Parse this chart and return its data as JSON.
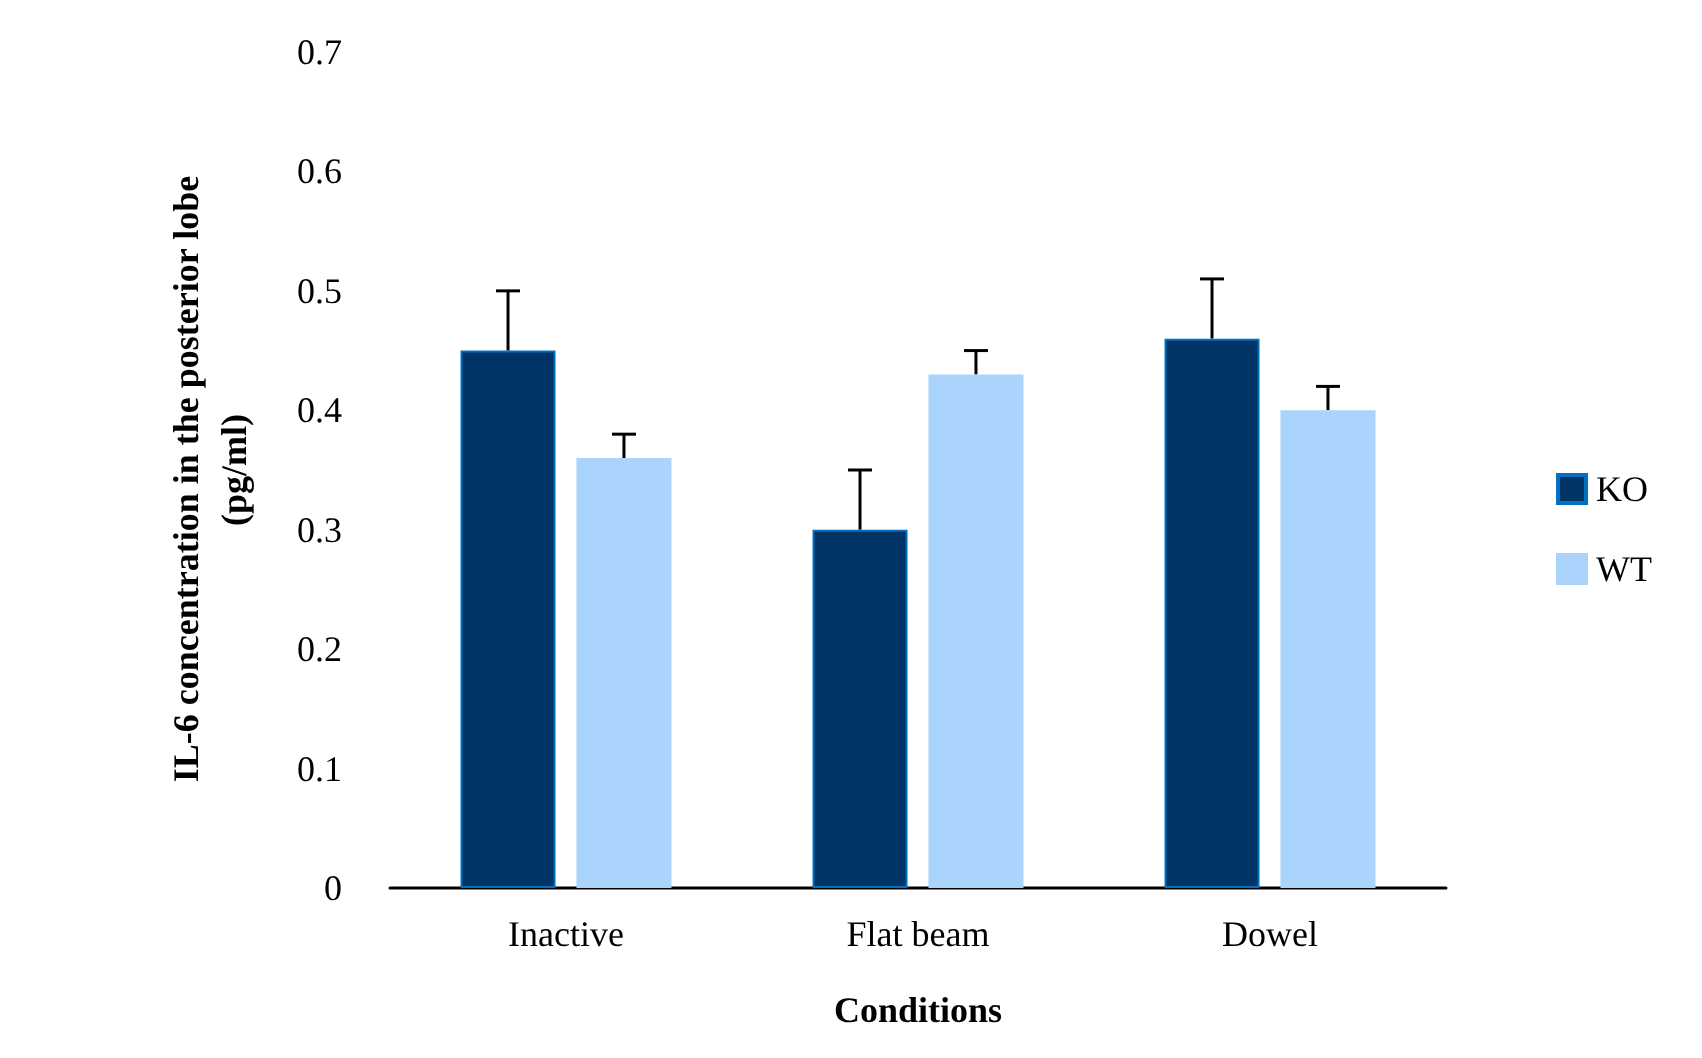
{
  "chart_data": {
    "type": "bar",
    "xlabel": "Conditions",
    "ylabel": "IL-6 concentration in the posterior lobe  (pg/ml)",
    "categories": [
      "Inactive",
      "Flat beam",
      "Dowel"
    ],
    "series": [
      {
        "name": "KO",
        "color": "#003366",
        "values": [
          0.45,
          0.3,
          0.46
        ],
        "errors": [
          [
            0.45,
            0.5
          ],
          [
            0.3,
            0.35
          ],
          [
            0.46,
            0.51
          ]
        ]
      },
      {
        "name": "WT",
        "color": "#aad4fb",
        "values": [
          0.36,
          0.43,
          0.4
        ],
        "errors": [
          [
            0.36,
            0.38
          ],
          [
            0.43,
            0.45
          ],
          [
            0.4,
            0.42
          ]
        ]
      }
    ],
    "ylim": [
      0,
      0.7
    ],
    "yticks": [
      0,
      0.1,
      0.2,
      0.3,
      0.4,
      0.5,
      0.6,
      0.7
    ],
    "grid": false,
    "legend": "right"
  }
}
